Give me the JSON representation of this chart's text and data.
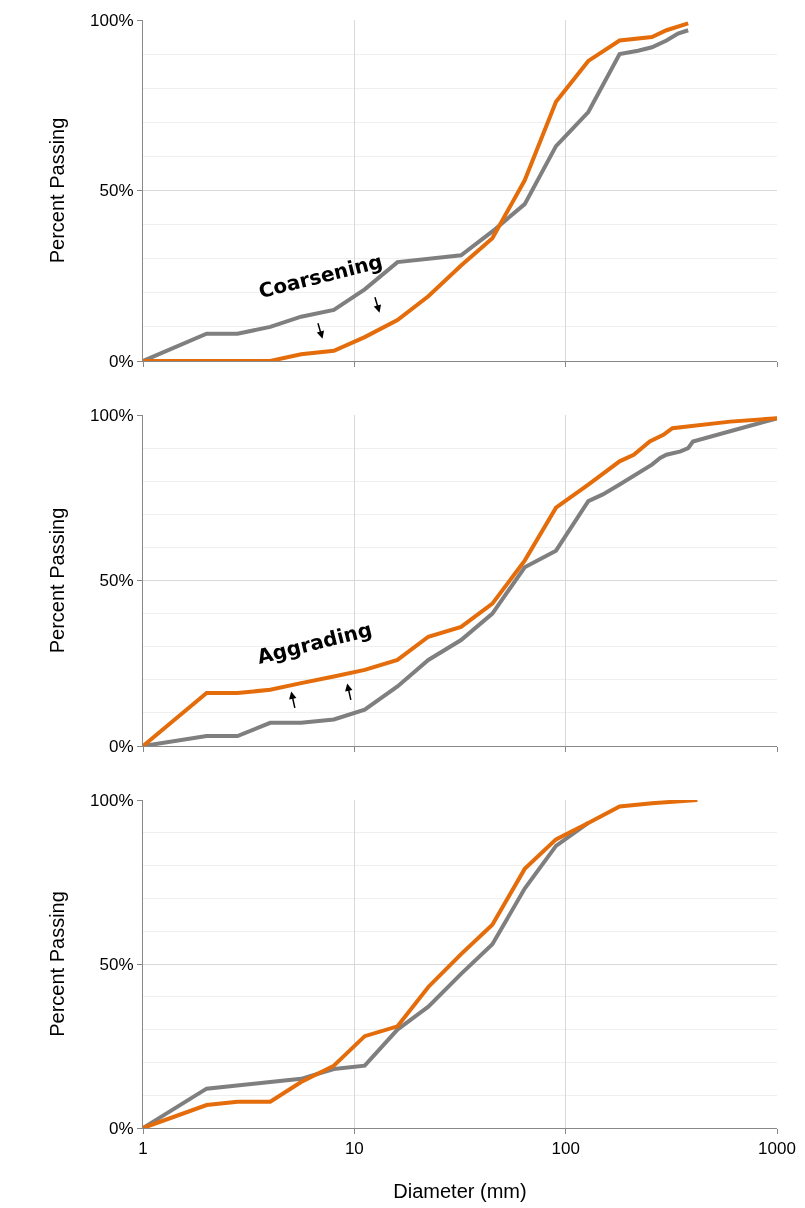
{
  "chart_data": [
    {
      "type": "line",
      "ylabel": "Percent Passing",
      "log": "x",
      "xlim": [
        1,
        1000
      ],
      "xticks": [
        1,
        10,
        100,
        1000
      ],
      "ylim": [
        0,
        100
      ],
      "yticks": [
        {
          "value": 0,
          "label": "0%"
        },
        {
          "value": 50,
          "label": "50%"
        },
        {
          "value": 100,
          "label": "100%"
        }
      ],
      "grid": true,
      "tick_labels": "y",
      "marker": "none",
      "line_style": "solid",
      "annotations": [
        "Coarsening"
      ],
      "series": [
        {
          "color": "#7f7f7f",
          "x": [
            1,
            2,
            2.8,
            4,
            5.6,
            8,
            11.2,
            16,
            32,
            45,
            64,
            90,
            128,
            180,
            220,
            256,
            300,
            340,
            380
          ],
          "values": [
            0,
            8,
            8,
            10,
            13,
            15,
            21,
            29,
            31,
            38,
            46,
            63,
            73,
            90,
            91,
            92,
            94,
            96,
            97
          ]
        },
        {
          "color": "#e46c0a",
          "x": [
            1,
            2,
            2.8,
            4,
            5.6,
            8,
            11.2,
            16,
            22.4,
            32,
            45,
            64,
            90,
            128,
            180,
            256,
            300,
            380
          ],
          "values": [
            0,
            0,
            0,
            0,
            2,
            3,
            7,
            12,
            19,
            28,
            36,
            53,
            76,
            88,
            94,
            95,
            97,
            99
          ]
        }
      ]
    },
    {
      "type": "line",
      "ylabel": "Percent Passing",
      "log": "x",
      "xlim": [
        1,
        1000
      ],
      "xticks": [
        1,
        10,
        100,
        1000
      ],
      "ylim": [
        0,
        100
      ],
      "yticks": [
        {
          "value": 0,
          "label": "0%"
        },
        {
          "value": 50,
          "label": "50%"
        },
        {
          "value": 100,
          "label": "100%"
        }
      ],
      "grid": true,
      "tick_labels": "y",
      "marker": "none",
      "line_style": "solid",
      "annotations": [
        "Aggrading"
      ],
      "series": [
        {
          "color": "#7f7f7f",
          "x": [
            1,
            2,
            2.8,
            4,
            5.6,
            8,
            11.2,
            16,
            22.4,
            32,
            45,
            64,
            90,
            128,
            150,
            180,
            256,
            280,
            300,
            350,
            380,
            400,
            1000
          ],
          "values": [
            0,
            3,
            3,
            7,
            7,
            8,
            11,
            18,
            26,
            32,
            40,
            54,
            59,
            74,
            76,
            79,
            85,
            87,
            88,
            89,
            90,
            92,
            99
          ]
        },
        {
          "color": "#e46c0a",
          "x": [
            1,
            2,
            2.8,
            4,
            5.6,
            8,
            11.2,
            16,
            22.4,
            32,
            45,
            64,
            90,
            128,
            180,
            210,
            250,
            290,
            320,
            600,
            1000
          ],
          "values": [
            0,
            16,
            16,
            17,
            19,
            21,
            23,
            26,
            33,
            36,
            43,
            56,
            72,
            79,
            86,
            88,
            92,
            94,
            96,
            98,
            99
          ]
        }
      ]
    },
    {
      "type": "line",
      "xlabel": "Diameter (mm)",
      "ylabel": "Percent Passing",
      "log": "x",
      "xlim": [
        1,
        1000
      ],
      "xticks": [
        1,
        10,
        100,
        1000
      ],
      "ylim": [
        0,
        100
      ],
      "yticks": [
        {
          "value": 0,
          "label": "0%"
        },
        {
          "value": 50,
          "label": "50%"
        },
        {
          "value": 100,
          "label": "100%"
        }
      ],
      "grid": true,
      "marker": "none",
      "line_style": "solid",
      "series": [
        {
          "color": "#7f7f7f",
          "x": [
            1,
            2,
            4,
            5.6,
            8,
            11.2,
            16,
            22.4,
            32,
            45,
            64,
            90,
            128
          ],
          "values": [
            0,
            12,
            14,
            15,
            18,
            19,
            30,
            37,
            47,
            56,
            73,
            86,
            93
          ]
        },
        {
          "color": "#e46c0a",
          "x": [
            1,
            2,
            2.8,
            4,
            5.6,
            8,
            11.2,
            16,
            22.4,
            32,
            45,
            64,
            90,
            128,
            180,
            256,
            420
          ],
          "values": [
            0,
            7,
            8,
            8,
            14,
            19,
            28,
            31,
            43,
            53,
            62,
            79,
            88,
            93,
            98,
            99,
            100
          ]
        }
      ]
    }
  ]
}
